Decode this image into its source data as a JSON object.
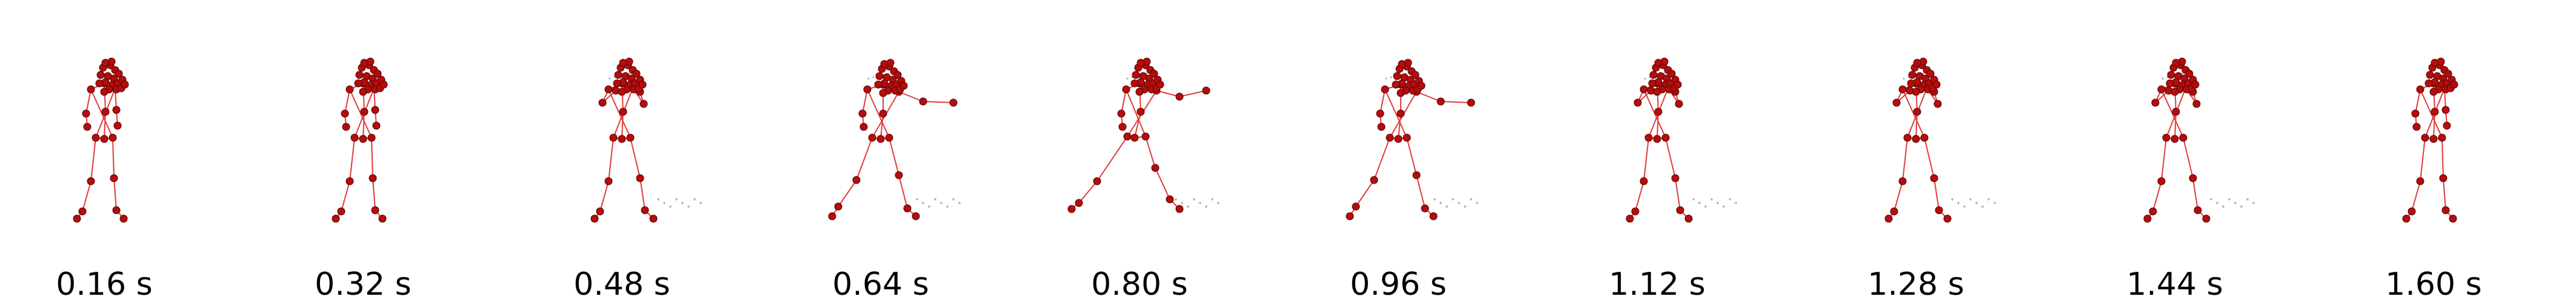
{
  "frames": [
    {
      "label": "0.16 s",
      "pose": "stance"
    },
    {
      "label": "0.32 s",
      "pose": "stance"
    },
    {
      "label": "0.48 s",
      "pose": "guard"
    },
    {
      "label": "0.64 s",
      "pose": "extend"
    },
    {
      "label": "0.80 s",
      "pose": "lunge"
    },
    {
      "label": "0.96 s",
      "pose": "extend"
    },
    {
      "label": "1.12 s",
      "pose": "guard"
    },
    {
      "label": "1.28 s",
      "pose": "guard"
    },
    {
      "label": "1.44 s",
      "pose": "guard"
    },
    {
      "label": "1.60 s",
      "pose": "stance"
    }
  ],
  "colors": {
    "bone": "#e03b3b",
    "joint": "#b30d0d",
    "joint_edge": "#5a0000",
    "trail": "#777777",
    "label": "#000000"
  }
}
